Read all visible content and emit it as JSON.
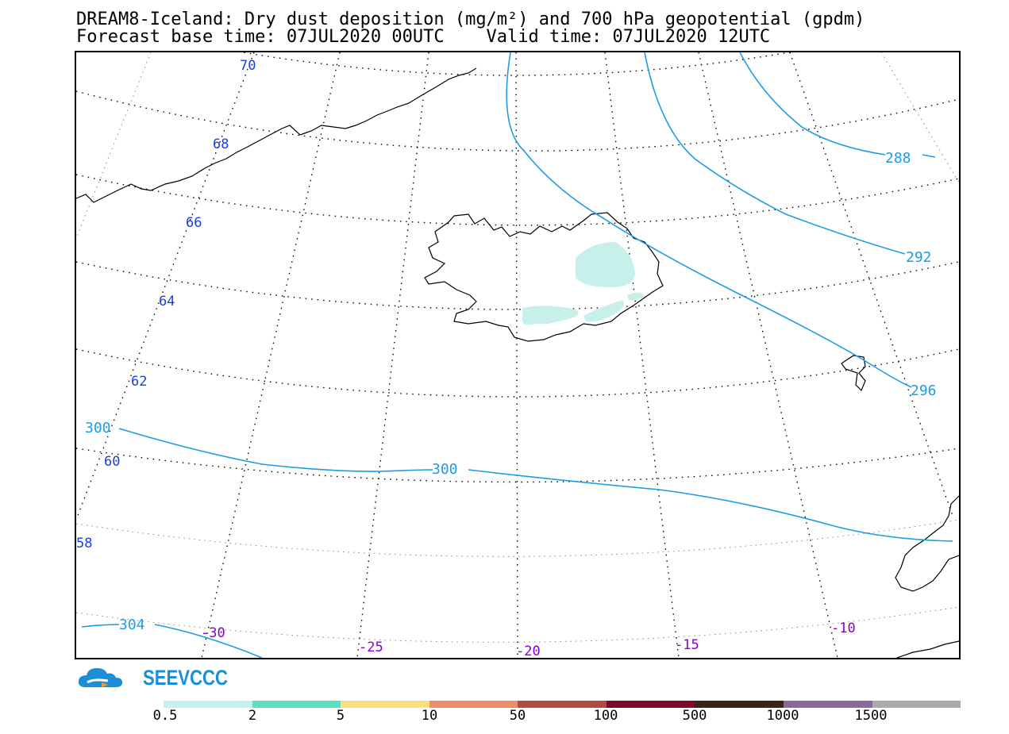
{
  "title": {
    "line1": "DREAM8-Iceland: Dry dust deposition (mg/m²) and 700 hPa geopotential (gpdm)",
    "line2": "Forecast base time: 07JUL2020 00UTC    Valid time: 07JUL2020 12UTC"
  },
  "map": {
    "latitude_labels": [
      "70",
      "68",
      "66",
      "64",
      "62",
      "60",
      "58"
    ],
    "longitude_labels": [
      "-30",
      "-25",
      "-20",
      "-15",
      "-10"
    ],
    "contour_labels": [
      "288",
      "292",
      "296",
      "300",
      "300",
      "304"
    ],
    "colors": {
      "contour": "#1e9be6",
      "lat_label": "#1a3fe0",
      "lon_label": "#8a00c8",
      "dust_light": "#c8f0ea",
      "coast": "#000000"
    }
  },
  "brand": {
    "name": "SEEVCCC",
    "icon": "cloud-logo-icon",
    "color": "#1a8fd8"
  },
  "legend": {
    "thresholds": [
      "0.5",
      "2",
      "5",
      "10",
      "50",
      "100",
      "500",
      "1000",
      "1500"
    ],
    "colors": [
      "#c8f0ea",
      "#5de0c0",
      "#fae07a",
      "#ec8c68",
      "#b04a44",
      "#7d0a2a",
      "#3a2418",
      "#8a6a9a",
      "#aaaaaa"
    ]
  }
}
